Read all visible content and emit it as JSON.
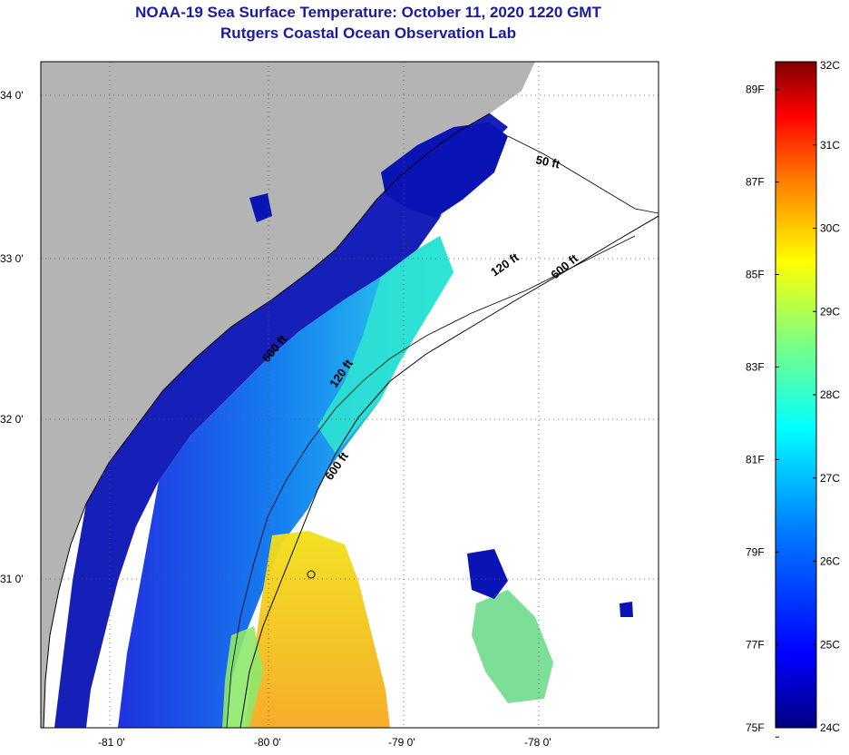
{
  "title": {
    "line1": "NOAA-19 Sea Surface Temperature:  October 11, 2020 1220 GMT",
    "line2": "Rutgers Coastal Ocean Observation Lab"
  },
  "map": {
    "longitude_ticks": [
      "-81 0'",
      "-80 0'",
      "-79 0'",
      "-78 0'"
    ],
    "latitude_ticks": [
      "34 0'",
      "33 0'",
      "32 0'",
      "31 0'"
    ],
    "lon_range": [
      -81.5,
      -77.3
    ],
    "lat_range": [
      30.1,
      34.2
    ],
    "contour_labels": [
      "50 ft",
      "120 ft",
      "600 ft",
      "120 ft",
      "600 ft",
      "600 ft"
    ],
    "colors": {
      "land": "#b4b4b4",
      "coastline": "#000000",
      "ocean_nodata": "#ffffff"
    }
  },
  "colorbar": {
    "celsius_labels": [
      "32C",
      "31C",
      "30C",
      "29C",
      "28C",
      "27C",
      "26C",
      "25C",
      "24C"
    ],
    "fahrenheit_labels": [
      "89F",
      "87F",
      "85F",
      "83F",
      "81F",
      "79F",
      "77F",
      "75F"
    ],
    "range_c": [
      24,
      32
    ],
    "colors": [
      "#00007f",
      "#0000ff",
      "#007fff",
      "#00ffff",
      "#7fff7f",
      "#ffff00",
      "#ff7f00",
      "#ff0000",
      "#7f0000"
    ]
  }
}
